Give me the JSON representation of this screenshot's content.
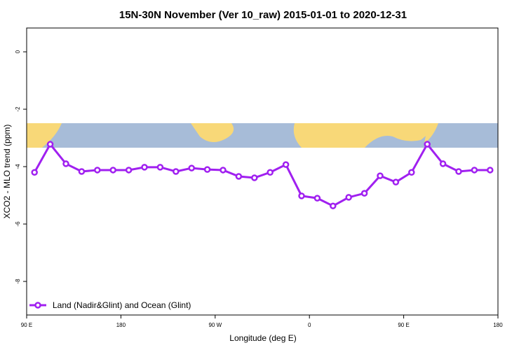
{
  "chart_data": {
    "type": "line",
    "title": "15N-30N November (Ver 10_raw)   2015-01-01 to 2020-12-31",
    "x_label": "Longitude (deg E)",
    "y_label": "XCO2 - MLO trend (ppm)",
    "x": [
      97.5,
      112.5,
      127.5,
      142.5,
      157.5,
      172.5,
      187.5,
      202.5,
      217.5,
      232.5,
      247.5,
      262.5,
      277.5,
      292.5,
      307.5,
      322.5,
      337.5,
      352.5,
      367.5,
      382.5,
      397.5,
      412.5,
      427.5,
      442.5,
      457.5,
      472.5,
      487.5,
      502.5,
      517.5,
      532.5
    ],
    "series": [
      {
        "name": "Land (Nadir&Glint) and Ocean (Glint)",
        "color": "#a020f0",
        "values": [
          -4.2,
          -3.22,
          -3.9,
          -4.17,
          -4.12,
          -4.12,
          -4.12,
          -4.02,
          -4.02,
          -4.17,
          -4.05,
          -4.1,
          -4.12,
          -4.34,
          -4.39,
          -4.2,
          -3.93,
          -5.02,
          -5.1,
          -5.37,
          -5.07,
          -4.93,
          -4.32,
          -4.54,
          -4.2,
          -3.22,
          -3.9,
          -4.17,
          -4.12,
          -4.12
        ]
      }
    ],
    "xlim": [
      90,
      540
    ],
    "xticks": [
      {
        "value": 90,
        "label": "90 E"
      },
      180,
      {
        "value": 270,
        "label": "90 W"
      },
      {
        "value": 360,
        "label": "0"
      },
      {
        "value": 450,
        "label": "90 E"
      },
      {
        "value": 540,
        "label": "180"
      }
    ],
    "ylim": [
      -9.17,
      0.83
    ],
    "yticks": [
      0,
      -2,
      -4,
      -6,
      -8
    ],
    "legend": "bottom-left"
  }
}
